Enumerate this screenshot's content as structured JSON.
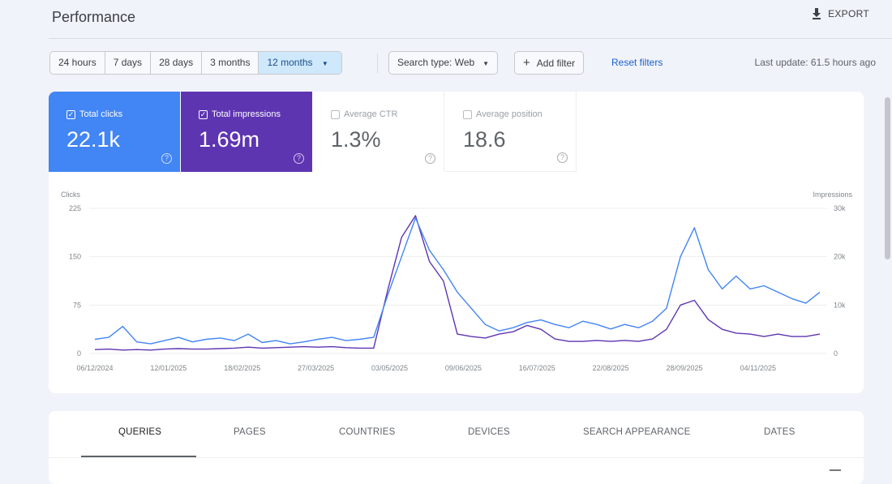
{
  "header": {
    "title": "Performance",
    "export_label": "EXPORT"
  },
  "filters": {
    "ranges": [
      "24 hours",
      "7 days",
      "28 days",
      "3 months",
      "12 months"
    ],
    "selected_range": "12 months",
    "search_type": "Search type: Web",
    "add_filter": "Add filter",
    "reset": "Reset filters",
    "last_update": "Last update: 61.5 hours ago"
  },
  "metrics": [
    {
      "label": "Total clicks",
      "value": "22.1k",
      "checked": true,
      "color": "#4285f4"
    },
    {
      "label": "Total impressions",
      "value": "1.69m",
      "checked": true,
      "color": "#5e35b1"
    },
    {
      "label": "Average CTR",
      "value": "1.3%",
      "checked": false
    },
    {
      "label": "Average position",
      "value": "18.6",
      "checked": false
    }
  ],
  "tabs": [
    "QUERIES",
    "PAGES",
    "COUNTRIES",
    "DEVICES",
    "SEARCH APPEARANCE",
    "DATES"
  ],
  "active_tab": "QUERIES",
  "chart_data": {
    "type": "line",
    "ylabel_left": "Clicks",
    "ylabel_right": "Impressions",
    "y_left_ticks": [
      "0",
      "75",
      "150",
      "225"
    ],
    "ylim_left": [
      0,
      225
    ],
    "y_right_ticks": [
      "0",
      "10k",
      "20k",
      "30k"
    ],
    "ylim_right": [
      0,
      30000
    ],
    "x_ticks": [
      "06/12/2024",
      "12/01/2025",
      "18/02/2025",
      "27/03/2025",
      "03/05/2025",
      "09/06/2025",
      "16/07/2025",
      "22/08/2025",
      "28/09/2025",
      "04/11/2025"
    ],
    "grid": true,
    "x": [
      "2024-12-06",
      "2024-12-13",
      "2024-12-20",
      "2024-12-27",
      "2025-01-03",
      "2025-01-10",
      "2025-01-17",
      "2025-01-24",
      "2025-01-31",
      "2025-02-07",
      "2025-02-14",
      "2025-02-21",
      "2025-02-28",
      "2025-03-07",
      "2025-03-14",
      "2025-03-21",
      "2025-03-28",
      "2025-04-04",
      "2025-04-11",
      "2025-04-18",
      "2025-04-25",
      "2025-05-02",
      "2025-05-09",
      "2025-05-16",
      "2025-05-23",
      "2025-05-30",
      "2025-06-06",
      "2025-06-13",
      "2025-06-20",
      "2025-06-27",
      "2025-07-04",
      "2025-07-11",
      "2025-07-18",
      "2025-07-25",
      "2025-08-01",
      "2025-08-08",
      "2025-08-15",
      "2025-08-22",
      "2025-08-29",
      "2025-09-05",
      "2025-09-12",
      "2025-09-19",
      "2025-09-26",
      "2025-10-03",
      "2025-10-10",
      "2025-10-17",
      "2025-10-24",
      "2025-10-31",
      "2025-11-07",
      "2025-11-14",
      "2025-11-21",
      "2025-11-28",
      "2025-12-05"
    ],
    "series": [
      {
        "name": "Clicks",
        "axis": "left",
        "color": "#4285f4",
        "values": [
          22,
          25,
          42,
          18,
          15,
          20,
          25,
          18,
          22,
          24,
          20,
          30,
          17,
          20,
          15,
          18,
          22,
          25,
          20,
          22,
          25,
          90,
          150,
          210,
          160,
          130,
          95,
          70,
          45,
          35,
          40,
          48,
          52,
          45,
          40,
          50,
          45,
          38,
          45,
          40,
          50,
          70,
          150,
          195,
          130,
          100,
          120,
          100,
          105,
          95,
          85,
          78,
          95
        ]
      },
      {
        "name": "Impressions",
        "axis": "right",
        "color": "#5e35b1",
        "values": [
          800,
          900,
          700,
          800,
          700,
          900,
          1000,
          900,
          900,
          1000,
          1100,
          1300,
          1100,
          1200,
          1300,
          1400,
          1300,
          1400,
          1200,
          1100,
          1100,
          13000,
          24000,
          28500,
          19000,
          15000,
          4000,
          3500,
          3200,
          4000,
          4500,
          5800,
          5000,
          3000,
          2500,
          2500,
          2700,
          2500,
          2700,
          2500,
          3000,
          5000,
          10000,
          11000,
          7000,
          5000,
          4200,
          4000,
          3500,
          4000,
          3500,
          3500,
          4000
        ]
      }
    ]
  }
}
